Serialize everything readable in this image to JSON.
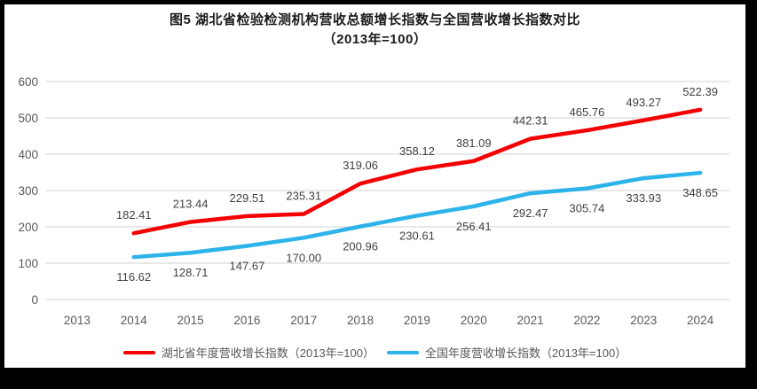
{
  "title": {
    "line1": "图5 湖北省检验检测机构营收总额增长指数与全国营收增长指数对比",
    "line2": "（2013年=100）"
  },
  "chart_data": {
    "type": "line",
    "x": [
      "2013",
      "2014",
      "2015",
      "2016",
      "2017",
      "2018",
      "2019",
      "2020",
      "2021",
      "2022",
      "2023",
      "2024"
    ],
    "series": [
      {
        "name": "湖北省年度营收增长指数（2013年=100）",
        "color": "#f40000",
        "label_side": "above",
        "values": [
          null,
          182.41,
          213.44,
          229.51,
          235.31,
          319.06,
          358.12,
          381.09,
          442.31,
          465.76,
          493.27,
          522.39
        ]
      },
      {
        "name": "全国年度营收增长指数（2013年=100）",
        "color": "#2cb3ea",
        "label_side": "below",
        "values": [
          null,
          116.62,
          128.71,
          147.67,
          170.0,
          200.96,
          230.61,
          256.41,
          292.47,
          305.74,
          333.93,
          348.65
        ]
      }
    ],
    "ylim": [
      0,
      600
    ],
    "ytick_interval": 100,
    "grid": true,
    "legend_position": "bottom",
    "label_decimals": 2,
    "styles": {
      "grid_color": "#d9d9d9",
      "tick_label_color": "#595959",
      "data_label_color": "#404040",
      "background": "#ffffff",
      "frame_color": "#000000"
    }
  }
}
